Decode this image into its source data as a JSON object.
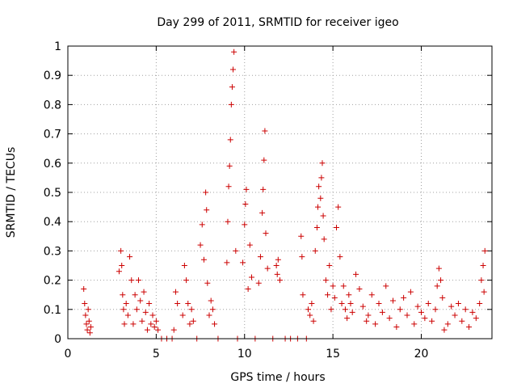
{
  "chart_data": {
    "type": "scatter",
    "title": "Day 299 of 2011, SRMTID for receiver igeo",
    "xlabel": "GPS time / hours",
    "ylabel": "SRMTID / TECUs",
    "xlim": [
      0,
      24
    ],
    "ylim": [
      0,
      1
    ],
    "x_ticks": [
      0,
      5,
      10,
      15,
      20
    ],
    "x_tick_labels": [
      "0",
      "5",
      "10",
      "15",
      "20"
    ],
    "y_ticks": [
      0,
      0.1,
      0.2,
      0.3,
      0.4,
      0.5,
      0.6,
      0.7,
      0.8,
      0.9,
      1
    ],
    "y_tick_labels": [
      "0",
      "0.1",
      "0.2",
      "0.3",
      "0.4",
      "0.5",
      "0.6",
      "0.7",
      "0.8",
      "0.9",
      "1"
    ],
    "grid": true,
    "marker": "+",
    "marker_color": "#cc0000",
    "series": [
      {
        "points": [
          [
            0.9,
            0.17
          ],
          [
            0.95,
            0.12
          ],
          [
            1.0,
            0.08
          ],
          [
            1.05,
            0.05
          ],
          [
            1.1,
            0.03
          ],
          [
            1.15,
            0.1
          ],
          [
            1.2,
            0.06
          ],
          [
            1.25,
            0.02
          ],
          [
            1.3,
            0.04
          ],
          [
            2.9,
            0.23
          ],
          [
            3.0,
            0.3
          ],
          [
            3.05,
            0.25
          ],
          [
            3.1,
            0.15
          ],
          [
            3.15,
            0.1
          ],
          [
            3.2,
            0.05
          ],
          [
            3.3,
            0.12
          ],
          [
            3.4,
            0.08
          ],
          [
            3.5,
            0.28
          ],
          [
            3.6,
            0.2
          ],
          [
            3.7,
            0.05
          ],
          [
            3.8,
            0.15
          ],
          [
            3.9,
            0.1
          ],
          [
            4.0,
            0.2
          ],
          [
            4.1,
            0.13
          ],
          [
            4.2,
            0.06
          ],
          [
            4.3,
            0.16
          ],
          [
            4.4,
            0.09
          ],
          [
            4.5,
            0.03
          ],
          [
            4.6,
            0.12
          ],
          [
            4.7,
            0.05
          ],
          [
            4.8,
            0.08
          ],
          [
            4.9,
            0.04
          ],
          [
            5.0,
            0.06
          ],
          [
            5.1,
            0.03
          ],
          [
            5.3,
            0.0
          ],
          [
            5.6,
            0.0
          ],
          [
            5.9,
            0.0
          ],
          [
            6.0,
            0.03
          ],
          [
            6.1,
            0.16
          ],
          [
            6.2,
            0.12
          ],
          [
            6.5,
            0.08
          ],
          [
            6.6,
            0.25
          ],
          [
            6.7,
            0.2
          ],
          [
            6.8,
            0.12
          ],
          [
            6.9,
            0.05
          ],
          [
            7.0,
            0.1
          ],
          [
            7.1,
            0.06
          ],
          [
            7.3,
            0.0
          ],
          [
            7.5,
            0.32
          ],
          [
            7.6,
            0.39
          ],
          [
            7.7,
            0.27
          ],
          [
            7.8,
            0.5
          ],
          [
            7.85,
            0.44
          ],
          [
            7.9,
            0.19
          ],
          [
            8.0,
            0.08
          ],
          [
            8.1,
            0.13
          ],
          [
            8.2,
            0.1
          ],
          [
            8.3,
            0.05
          ],
          [
            8.5,
            0.0
          ],
          [
            9.0,
            0.26
          ],
          [
            9.05,
            0.4
          ],
          [
            9.1,
            0.52
          ],
          [
            9.15,
            0.59
          ],
          [
            9.2,
            0.68
          ],
          [
            9.25,
            0.8
          ],
          [
            9.3,
            0.86
          ],
          [
            9.35,
            0.92
          ],
          [
            9.4,
            0.98
          ],
          [
            9.5,
            0.3
          ],
          [
            9.6,
            0.0
          ],
          [
            9.9,
            0.26
          ],
          [
            10.0,
            0.39
          ],
          [
            10.05,
            0.46
          ],
          [
            10.1,
            0.51
          ],
          [
            10.2,
            0.17
          ],
          [
            10.3,
            0.32
          ],
          [
            10.4,
            0.21
          ],
          [
            10.6,
            0.0
          ],
          [
            10.8,
            0.19
          ],
          [
            10.9,
            0.28
          ],
          [
            11.0,
            0.43
          ],
          [
            11.05,
            0.51
          ],
          [
            11.1,
            0.61
          ],
          [
            11.15,
            0.71
          ],
          [
            11.2,
            0.36
          ],
          [
            11.3,
            0.24
          ],
          [
            11.6,
            0.0
          ],
          [
            11.8,
            0.25
          ],
          [
            11.85,
            0.22
          ],
          [
            11.9,
            0.27
          ],
          [
            12.0,
            0.2
          ],
          [
            12.3,
            0.0
          ],
          [
            12.6,
            0.0
          ],
          [
            13.0,
            0.0
          ],
          [
            13.2,
            0.35
          ],
          [
            13.25,
            0.28
          ],
          [
            13.3,
            0.15
          ],
          [
            13.5,
            0.0
          ],
          [
            13.6,
            0.1
          ],
          [
            13.7,
            0.08
          ],
          [
            13.8,
            0.12
          ],
          [
            13.9,
            0.06
          ],
          [
            14.0,
            0.3
          ],
          [
            14.1,
            0.38
          ],
          [
            14.15,
            0.45
          ],
          [
            14.2,
            0.52
          ],
          [
            14.3,
            0.48
          ],
          [
            14.35,
            0.55
          ],
          [
            14.4,
            0.6
          ],
          [
            14.45,
            0.42
          ],
          [
            14.5,
            0.34
          ],
          [
            14.6,
            0.2
          ],
          [
            14.7,
            0.15
          ],
          [
            14.8,
            0.25
          ],
          [
            14.9,
            0.1
          ],
          [
            15.0,
            0.18
          ],
          [
            15.1,
            0.14
          ],
          [
            15.2,
            0.38
          ],
          [
            15.3,
            0.45
          ],
          [
            15.4,
            0.28
          ],
          [
            15.5,
            0.12
          ],
          [
            15.6,
            0.18
          ],
          [
            15.7,
            0.1
          ],
          [
            15.8,
            0.07
          ],
          [
            15.9,
            0.15
          ],
          [
            16.0,
            0.12
          ],
          [
            16.1,
            0.09
          ],
          [
            16.3,
            0.22
          ],
          [
            16.5,
            0.17
          ],
          [
            16.7,
            0.11
          ],
          [
            16.9,
            0.06
          ],
          [
            17.0,
            0.08
          ],
          [
            17.2,
            0.15
          ],
          [
            17.4,
            0.05
          ],
          [
            17.6,
            0.12
          ],
          [
            17.8,
            0.09
          ],
          [
            18.0,
            0.18
          ],
          [
            18.2,
            0.07
          ],
          [
            18.4,
            0.13
          ],
          [
            18.6,
            0.04
          ],
          [
            18.8,
            0.1
          ],
          [
            19.0,
            0.14
          ],
          [
            19.2,
            0.08
          ],
          [
            19.4,
            0.16
          ],
          [
            19.6,
            0.05
          ],
          [
            19.8,
            0.11
          ],
          [
            20.0,
            0.09
          ],
          [
            20.2,
            0.07
          ],
          [
            20.4,
            0.12
          ],
          [
            20.6,
            0.06
          ],
          [
            20.8,
            0.1
          ],
          [
            20.9,
            0.18
          ],
          [
            21.0,
            0.24
          ],
          [
            21.1,
            0.2
          ],
          [
            21.2,
            0.14
          ],
          [
            21.3,
            0.03
          ],
          [
            21.5,
            0.05
          ],
          [
            21.7,
            0.11
          ],
          [
            21.9,
            0.08
          ],
          [
            22.1,
            0.12
          ],
          [
            22.3,
            0.06
          ],
          [
            22.5,
            0.1
          ],
          [
            22.7,
            0.04
          ],
          [
            22.9,
            0.09
          ],
          [
            23.1,
            0.07
          ],
          [
            23.3,
            0.12
          ],
          [
            23.4,
            0.2
          ],
          [
            23.5,
            0.25
          ],
          [
            23.6,
            0.3
          ],
          [
            23.55,
            0.16
          ]
        ]
      }
    ]
  }
}
